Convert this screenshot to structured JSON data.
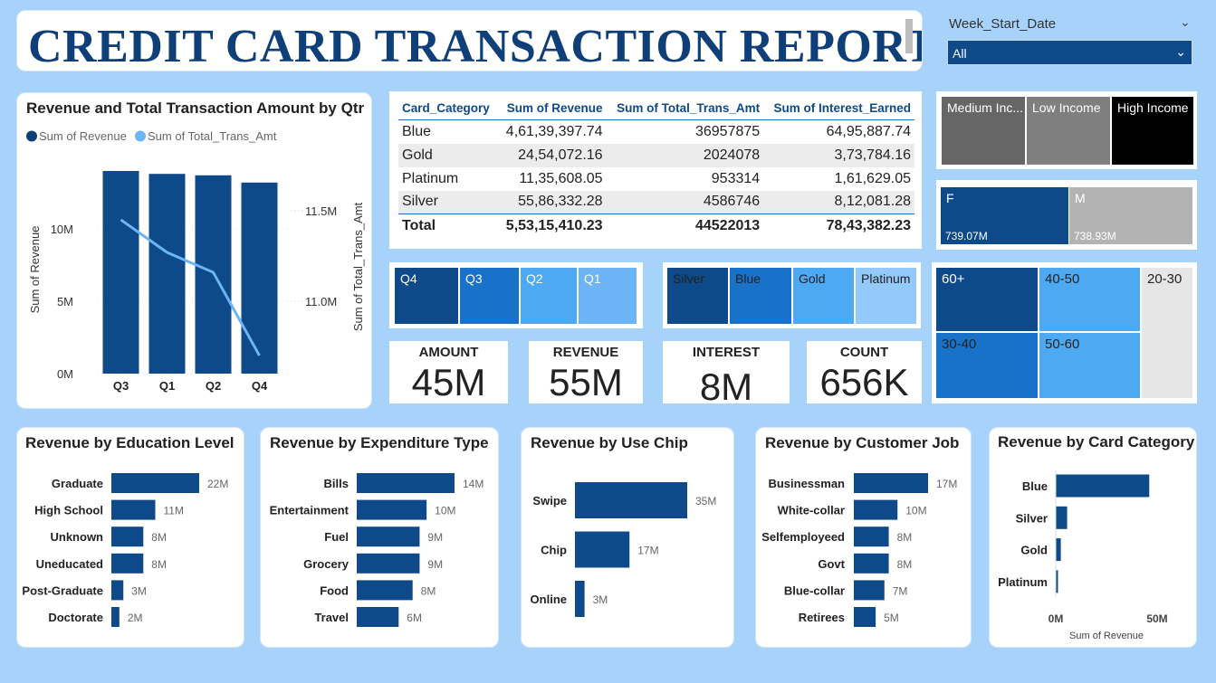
{
  "header": {
    "title": "CREDIT CARD TRANSACTION REPORT",
    "slicer_label": "Week_Start_Date",
    "slicer_value": "All"
  },
  "colors": {
    "navy": "#0e4a8a",
    "mid_blue": "#1872c9",
    "light_blue": "#4ea9f3",
    "pale_blue": "#93c9fb",
    "line": "#6cb4f5",
    "dark_gray": "#666666",
    "mid_gray": "#7f7f7f",
    "black": "#000000",
    "light_gray": "#b3b3b3",
    "pale_gray": "#e6e6e6"
  },
  "table": {
    "headers": [
      "Card_Category",
      "Sum of Revenue",
      "Sum of Total_Trans_Amt",
      "Sum of Interest_Earned"
    ],
    "rows": [
      [
        "Blue",
        "4,61,39,397.74",
        "36957875",
        "64,95,887.74"
      ],
      [
        "Gold",
        "24,54,072.16",
        "2024078",
        "3,73,784.16"
      ],
      [
        "Platinum",
        "11,35,608.05",
        "953314",
        "1,61,629.05"
      ],
      [
        "Silver",
        "55,86,332.28",
        "4586746",
        "8,12,081.28"
      ]
    ],
    "total": [
      "Total",
      "5,53,15,410.23",
      "44522013",
      "78,43,382.23"
    ]
  },
  "income_tiles": [
    "Medium Inc...",
    "Low Income",
    "High Income"
  ],
  "gender_tiles": [
    {
      "label": "F",
      "value": "739.07M"
    },
    {
      "label": "M",
      "value": "738.93M"
    }
  ],
  "quarter_tiles": [
    "Q4",
    "Q3",
    "Q2",
    "Q1"
  ],
  "category_tiles": [
    "Silver",
    "Blue",
    "Gold",
    "Platinum"
  ],
  "age_tiles": [
    "60+",
    "40-50",
    "20-30",
    "30-40",
    "50-60"
  ],
  "kpis": [
    {
      "label": "AMOUNT",
      "value": "45M"
    },
    {
      "label": "REVENUE",
      "value": "55M"
    },
    {
      "label": "INTEREST",
      "value": "8M"
    },
    {
      "label": "COUNT",
      "value": "656K"
    }
  ],
  "chart_data": [
    {
      "type": "bar",
      "title": "Revenue and Total Transaction Amount by Qtr",
      "categories": [
        "Q3",
        "Q1",
        "Q2",
        "Q4"
      ],
      "series": [
        {
          "name": "Sum of Revenue",
          "type": "bar",
          "values": [
            14.0,
            13.8,
            13.7,
            13.2
          ]
        },
        {
          "name": "Sum of Total_Trans_Amt",
          "type": "line",
          "values": [
            11.45,
            11.27,
            11.16,
            10.7
          ]
        }
      ],
      "ylabel": "Sum of Revenue",
      "y2label": "Sum of Total_Trans_Amt",
      "ylim": [
        0,
        15
      ],
      "y_ticks": [
        "0M",
        "5M",
        "10M"
      ],
      "y2_ticks": [
        "11.0M",
        "11.5M"
      ],
      "y2_tick_values": [
        11.0,
        11.5
      ],
      "y2lim": [
        10.6,
        11.8
      ],
      "legend": "top-left"
    },
    {
      "type": "bar",
      "orientation": "horizontal",
      "title": "Revenue by Education Level",
      "categories": [
        "Graduate",
        "High School",
        "Unknown",
        "Uneducated",
        "Post-Graduate",
        "Doctorate"
      ],
      "values": [
        22,
        11,
        8,
        8,
        3,
        2
      ],
      "data_labels": [
        "22M",
        "11M",
        "8M",
        "8M",
        "3M",
        "2M"
      ],
      "xlim": [
        0,
        22
      ]
    },
    {
      "type": "bar",
      "orientation": "horizontal",
      "title": "Revenue by Expenditure Type",
      "categories": [
        "Bills",
        "Entertainment",
        "Fuel",
        "Grocery",
        "Food",
        "Travel"
      ],
      "values": [
        14,
        10,
        9,
        9,
        8,
        6
      ],
      "data_labels": [
        "14M",
        "10M",
        "9M",
        "9M",
        "8M",
        "6M"
      ],
      "xlim": [
        0,
        14
      ]
    },
    {
      "type": "bar",
      "orientation": "horizontal",
      "title": "Revenue by Use Chip",
      "categories": [
        "Swipe",
        "Chip",
        "Online"
      ],
      "values": [
        35,
        17,
        3
      ],
      "data_labels": [
        "35M",
        "17M",
        "3M"
      ],
      "xlim": [
        0,
        35
      ]
    },
    {
      "type": "bar",
      "orientation": "horizontal",
      "title": "Revenue by Customer Job",
      "categories": [
        "Businessman",
        "White-collar",
        "Selfemployeed",
        "Govt",
        "Blue-collar",
        "Retirees"
      ],
      "values": [
        17,
        10,
        8,
        8,
        7,
        5
      ],
      "data_labels": [
        "17M",
        "10M",
        "8M",
        "8M",
        "7M",
        "5M"
      ],
      "xlim": [
        0,
        17
      ]
    },
    {
      "type": "bar",
      "orientation": "horizontal",
      "title": "Revenue by Card Category",
      "categories": [
        "Blue",
        "Silver",
        "Gold",
        "Platinum"
      ],
      "values": [
        46.1,
        5.6,
        2.5,
        1.1
      ],
      "xlabel": "Sum of Revenue",
      "x_ticks": [
        "0M",
        "50M"
      ],
      "xlim": [
        0,
        50
      ]
    }
  ]
}
